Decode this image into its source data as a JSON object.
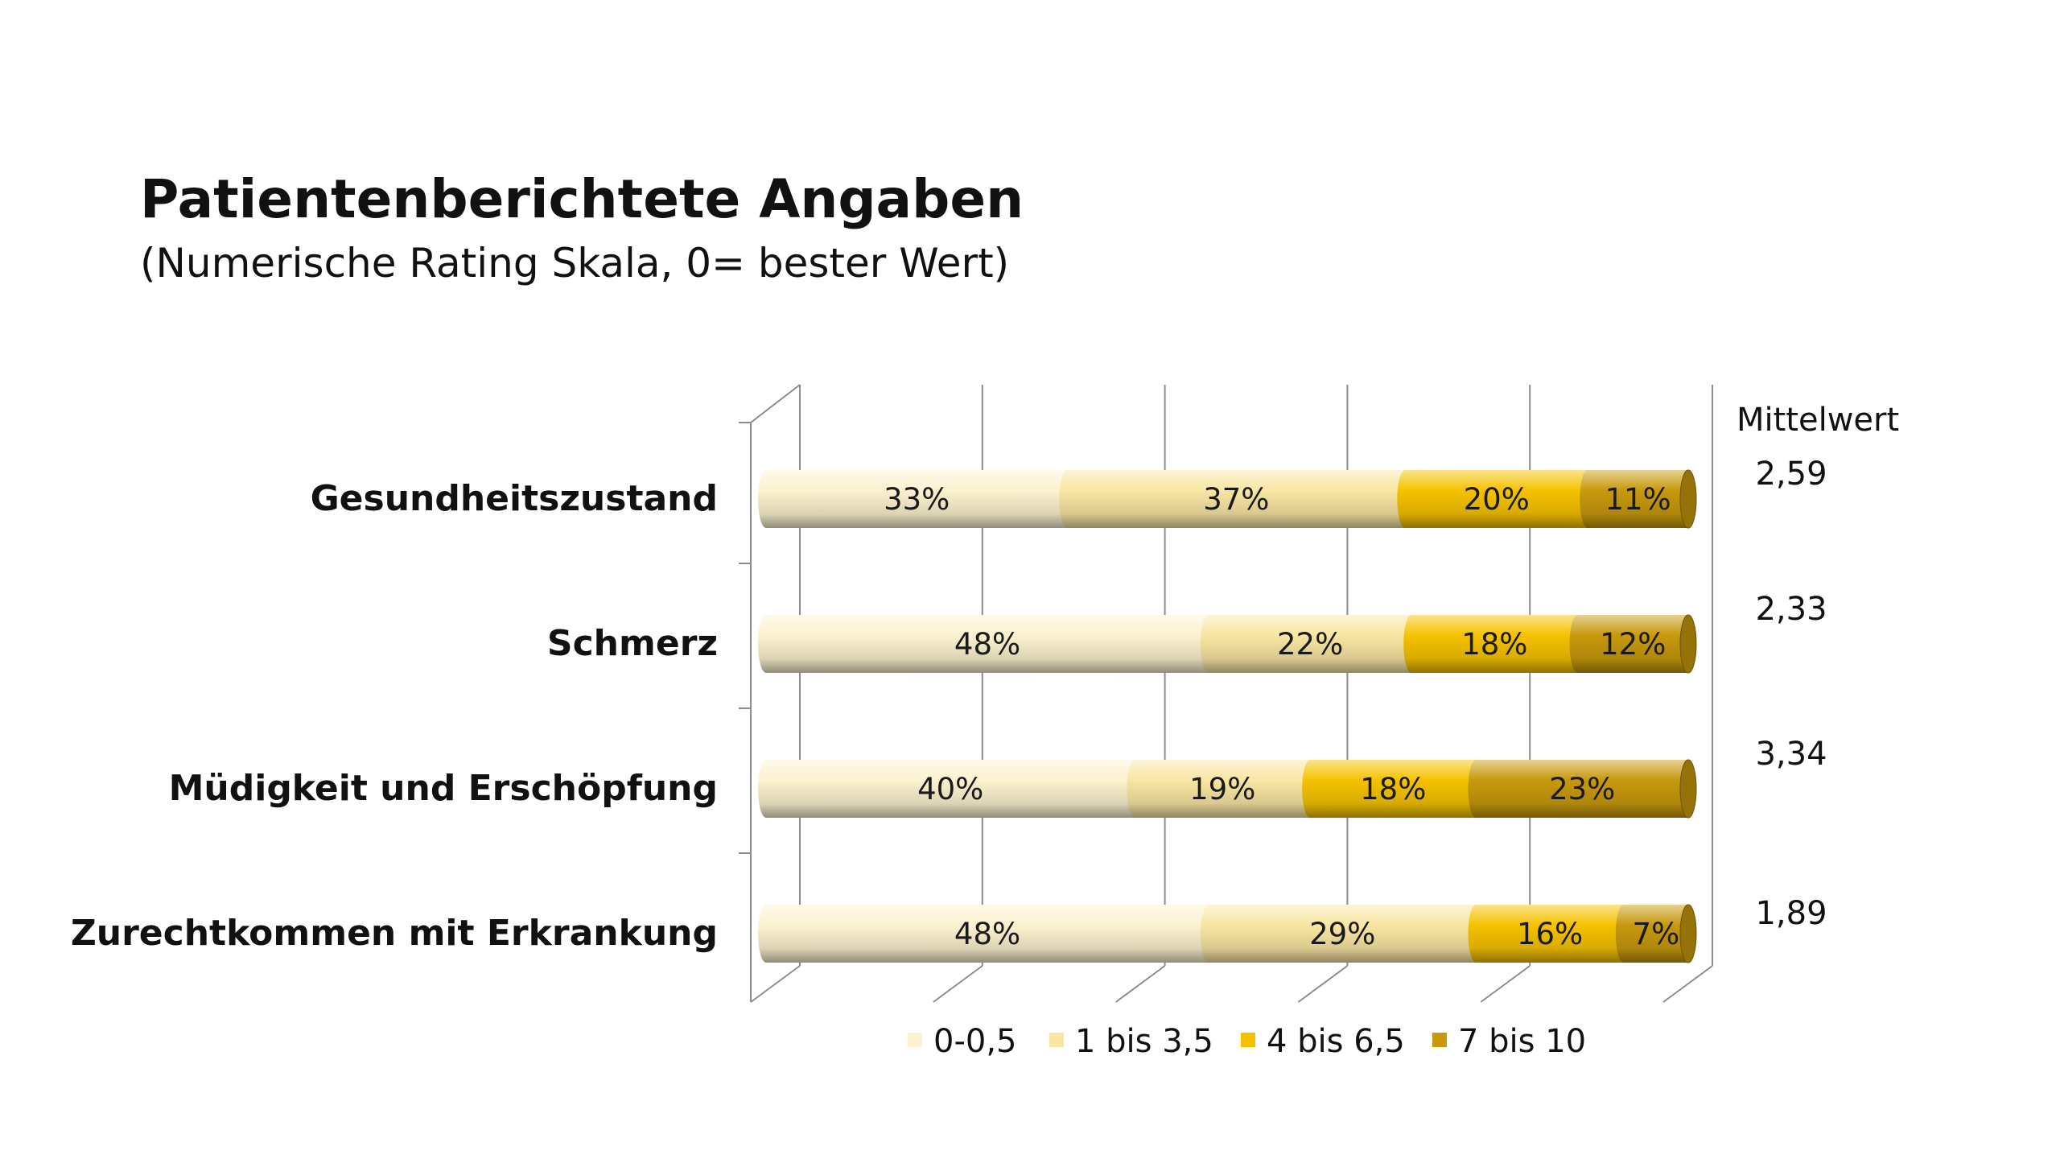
{
  "title": "Patientenberichtete Angaben",
  "subtitle": "(Numerische Rating Skala, 0= bester Wert)",
  "mean_header": "Mittelwert",
  "chart_data": {
    "type": "bar",
    "orientation": "horizontal",
    "stacked": "percent",
    "categories": [
      "Gesundheitszustand",
      "Schmerz",
      "Müdigkeit und Erschöpfung",
      "Zurechtkommen mit Erkrankung"
    ],
    "series": [
      {
        "name": "0-0,5",
        "color": "#fcf2cf",
        "values": [
          33,
          48,
          40,
          48
        ],
        "labels": [
          "33%",
          "48%",
          "40%",
          "48%"
        ]
      },
      {
        "name": "1 bis 3,5",
        "color": "#f8e6a2",
        "values": [
          37,
          22,
          19,
          29
        ],
        "labels": [
          "37%",
          "22%",
          "19%",
          "29%"
        ]
      },
      {
        "name": "4 bis 6,5",
        "color": "#f5c200",
        "values": [
          20,
          18,
          18,
          16
        ],
        "labels": [
          "20%",
          "18%",
          "18%",
          "16%"
        ]
      },
      {
        "name": "7 bis 10",
        "color": "#c7990c",
        "values": [
          11,
          12,
          23,
          7
        ],
        "labels": [
          "11%",
          "12%",
          "23%",
          "7%"
        ]
      }
    ],
    "mittelwert": [
      "2,59",
      "2,33",
      "3,34",
      "1,89"
    ],
    "xlim": [
      0,
      100
    ],
    "grid": true,
    "legend_position": "bottom"
  }
}
